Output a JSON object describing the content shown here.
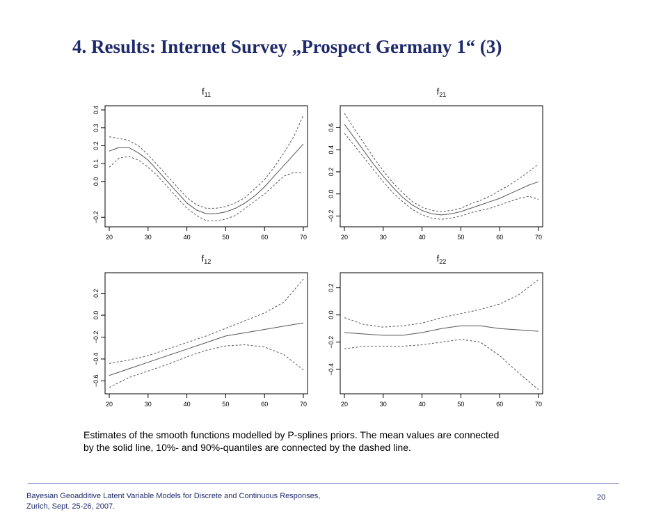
{
  "slide": {
    "title": "4. Results:  Internet Survey „Prospect Germany 1“ (3)",
    "caption_line1": "Estimates of the smooth functions modelled by P-splines priors. The mean values are connected",
    "caption_line2": "by the solid line, 10%- and 90%-quantiles are connected by the dashed line.",
    "footer_line1": "Bayesian Geoadditive Latent Variable Models for Discrete and Continuous Responses,",
    "footer_line2": "Zurich, Sept. 25-26, 2007.",
    "page_number": "20"
  },
  "colors": {
    "title": "#1f2a6b",
    "line": "#555555",
    "axis": "#000000"
  },
  "chart_data": [
    {
      "type": "line",
      "title": "f",
      "title_sub": "11",
      "xlim": [
        20,
        70
      ],
      "ylim": [
        -0.23,
        0.4
      ],
      "x_ticks": [
        "20",
        "30",
        "40",
        "50",
        "60",
        "70"
      ],
      "y_ticks": [
        {
          "v": -0.2,
          "l": "−0.2"
        },
        {
          "v": 0.0,
          "l": "0.0"
        },
        {
          "v": 0.1,
          "l": "0.1"
        },
        {
          "v": 0.2,
          "l": "0.2"
        },
        {
          "v": 0.3,
          "l": "0.3"
        },
        {
          "v": 0.4,
          "l": "0.4"
        }
      ],
      "x": [
        20,
        22.5,
        25,
        27.5,
        30,
        32.5,
        35,
        37.5,
        40,
        42.5,
        45,
        47.5,
        50,
        52.5,
        55,
        57.5,
        60,
        62.5,
        65,
        67.5,
        70
      ],
      "series": [
        {
          "style": "solid",
          "values": [
            0.17,
            0.19,
            0.19,
            0.16,
            0.12,
            0.06,
            0.0,
            -0.06,
            -0.12,
            -0.16,
            -0.18,
            -0.18,
            -0.17,
            -0.15,
            -0.12,
            -0.08,
            -0.03,
            0.03,
            0.09,
            0.15,
            0.21
          ]
        },
        {
          "style": "dashed",
          "values": [
            0.25,
            0.24,
            0.23,
            0.2,
            0.15,
            0.09,
            0.03,
            -0.03,
            -0.09,
            -0.13,
            -0.15,
            -0.15,
            -0.14,
            -0.12,
            -0.09,
            -0.04,
            0.01,
            0.08,
            0.16,
            0.25,
            0.37
          ]
        },
        {
          "style": "dashed",
          "values": [
            0.08,
            0.13,
            0.14,
            0.12,
            0.08,
            0.03,
            -0.03,
            -0.09,
            -0.15,
            -0.19,
            -0.22,
            -0.22,
            -0.21,
            -0.19,
            -0.15,
            -0.11,
            -0.07,
            -0.02,
            0.03,
            0.05,
            0.05
          ]
        }
      ]
    },
    {
      "type": "line",
      "title": "f",
      "title_sub": "21",
      "xlim": [
        20,
        70
      ],
      "ylim": [
        -0.26,
        0.76
      ],
      "x_ticks": [
        "20",
        "30",
        "40",
        "50",
        "60",
        "70"
      ],
      "y_ticks": [
        {
          "v": -0.2,
          "l": "−0.2"
        },
        {
          "v": 0.0,
          "l": "0.0"
        },
        {
          "v": 0.2,
          "l": "0.2"
        },
        {
          "v": 0.4,
          "l": "0.4"
        },
        {
          "v": 0.6,
          "l": "0.6"
        }
      ],
      "x": [
        20,
        22.5,
        25,
        27.5,
        30,
        32.5,
        35,
        37.5,
        40,
        42.5,
        45,
        47.5,
        50,
        52.5,
        55,
        57.5,
        60,
        62.5,
        65,
        67.5,
        70
      ],
      "series": [
        {
          "style": "solid",
          "values": [
            0.63,
            0.51,
            0.39,
            0.27,
            0.16,
            0.06,
            -0.03,
            -0.1,
            -0.15,
            -0.18,
            -0.19,
            -0.18,
            -0.16,
            -0.13,
            -0.1,
            -0.07,
            -0.04,
            0.0,
            0.04,
            0.08,
            0.11
          ]
        },
        {
          "style": "dashed",
          "values": [
            0.73,
            0.59,
            0.46,
            0.33,
            0.21,
            0.1,
            0.01,
            -0.07,
            -0.12,
            -0.15,
            -0.16,
            -0.15,
            -0.13,
            -0.09,
            -0.06,
            -0.02,
            0.03,
            0.08,
            0.14,
            0.2,
            0.27
          ]
        },
        {
          "style": "dashed",
          "values": [
            0.55,
            0.44,
            0.33,
            0.22,
            0.11,
            0.01,
            -0.07,
            -0.14,
            -0.19,
            -0.22,
            -0.23,
            -0.22,
            -0.2,
            -0.17,
            -0.15,
            -0.13,
            -0.1,
            -0.07,
            -0.04,
            -0.02,
            -0.05
          ]
        }
      ]
    },
    {
      "type": "line",
      "title": "f",
      "title_sub": "12",
      "xlim": [
        20,
        70
      ],
      "ylim": [
        -0.68,
        0.35
      ],
      "x_ticks": [
        "20",
        "30",
        "40",
        "50",
        "60",
        "70"
      ],
      "y_ticks": [
        {
          "v": -0.6,
          "l": "−0.6"
        },
        {
          "v": -0.4,
          "l": "−0.4"
        },
        {
          "v": -0.2,
          "l": "−0.2"
        },
        {
          "v": 0.0,
          "l": "0.0"
        },
        {
          "v": 0.2,
          "l": "0.2"
        }
      ],
      "x": [
        20,
        25,
        30,
        35,
        40,
        45,
        50,
        55,
        60,
        65,
        70
      ],
      "series": [
        {
          "style": "solid",
          "values": [
            -0.55,
            -0.49,
            -0.43,
            -0.37,
            -0.31,
            -0.25,
            -0.19,
            -0.16,
            -0.13,
            -0.1,
            -0.07
          ]
        },
        {
          "style": "dashed",
          "values": [
            -0.44,
            -0.41,
            -0.37,
            -0.31,
            -0.25,
            -0.19,
            -0.12,
            -0.05,
            0.02,
            0.12,
            0.33
          ]
        },
        {
          "style": "dashed",
          "values": [
            -0.66,
            -0.57,
            -0.51,
            -0.45,
            -0.38,
            -0.32,
            -0.28,
            -0.27,
            -0.29,
            -0.36,
            -0.5
          ]
        }
      ]
    },
    {
      "type": "line",
      "title": "f",
      "title_sub": "22",
      "xlim": [
        20,
        70
      ],
      "ylim": [
        -0.55,
        0.28
      ],
      "x_ticks": [
        "20",
        "30",
        "40",
        "50",
        "60",
        "70"
      ],
      "y_ticks": [
        {
          "v": -0.4,
          "l": "−0.4"
        },
        {
          "v": -0.2,
          "l": "−0.2"
        },
        {
          "v": 0.0,
          "l": "0.0"
        },
        {
          "v": 0.2,
          "l": "0.2"
        }
      ],
      "x": [
        20,
        25,
        30,
        35,
        40,
        45,
        50,
        55,
        60,
        65,
        70
      ],
      "series": [
        {
          "style": "solid",
          "values": [
            -0.13,
            -0.14,
            -0.15,
            -0.15,
            -0.13,
            -0.1,
            -0.08,
            -0.08,
            -0.1,
            -0.11,
            -0.12
          ]
        },
        {
          "style": "dashed",
          "values": [
            -0.02,
            -0.07,
            -0.09,
            -0.08,
            -0.06,
            -0.02,
            0.01,
            0.04,
            0.08,
            0.15,
            0.26
          ]
        },
        {
          "style": "dashed",
          "values": [
            -0.25,
            -0.23,
            -0.23,
            -0.23,
            -0.22,
            -0.2,
            -0.18,
            -0.2,
            -0.3,
            -0.43,
            -0.55
          ]
        }
      ]
    }
  ]
}
